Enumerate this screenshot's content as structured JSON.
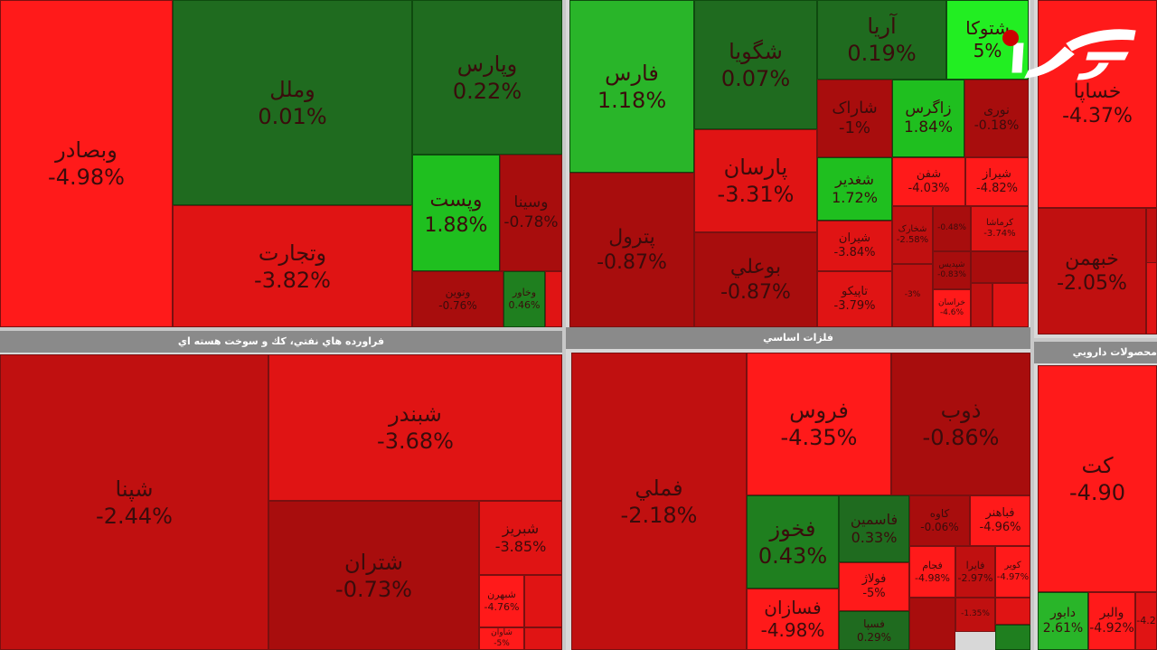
{
  "chart_data": [
    {
      "type": "treemap",
      "panel_title": "",
      "cells": [
        {
          "name": "وبصادر",
          "change": "-4.98%",
          "color": "#ff1a1a"
        },
        {
          "name": "وملل",
          "change": "0.01%",
          "color": "#1f6b1f"
        },
        {
          "name": "وپارس",
          "change": "0.22%",
          "color": "#1f6b1f"
        },
        {
          "name": "وتجارت",
          "change": "-3.82%",
          "color": "#e01414"
        },
        {
          "name": "وپست",
          "change": "1.88%",
          "color": "#1fbf1f"
        },
        {
          "name": "وسینا",
          "change": "-0.78%",
          "color": "#a80d0d"
        },
        {
          "name": "ونوین",
          "change": "-0.76%",
          "color": "#a80d0d"
        },
        {
          "name": "وخاور",
          "change": "0.46%",
          "color": "#1f7f1f"
        },
        {
          "name": "",
          "change": "",
          "color": "#e01414"
        }
      ]
    },
    {
      "type": "treemap",
      "panel_title": "",
      "cells": [
        {
          "name": "فارس",
          "change": "1.18%",
          "color": "#29b529"
        },
        {
          "name": "شگویا",
          "change": "0.07%",
          "color": "#1f6b1f"
        },
        {
          "name": "آریا",
          "change": "0.19%",
          "color": "#1f6b1f"
        },
        {
          "name": "شتوکا",
          "change": "5%",
          "color": "#22ee22"
        },
        {
          "name": "شاراک",
          "change": "-1%",
          "color": "#a80d0d"
        },
        {
          "name": "زاگرس",
          "change": "1.84%",
          "color": "#1fbf1f"
        },
        {
          "name": "نوری",
          "change": "-0.18%",
          "color": "#a80d0d"
        },
        {
          "name": "پارسان",
          "change": "-3.31%",
          "color": "#e01414"
        },
        {
          "name": "شغدیر",
          "change": "1.72%",
          "color": "#1fbf1f"
        },
        {
          "name": "شفن",
          "change": "-4.03%",
          "color": "#ff1a1a"
        },
        {
          "name": "شیراز",
          "change": "-4.82%",
          "color": "#ff1a1a"
        },
        {
          "name": "پترول",
          "change": "-0.87%",
          "color": "#a80d0d"
        },
        {
          "name": "بوعلي",
          "change": "-0.87%",
          "color": "#a80d0d"
        },
        {
          "name": "شیران",
          "change": "-3.84%",
          "color": "#e01414"
        },
        {
          "name": "شخارک",
          "change": "-2.58%",
          "color": "#c01010"
        },
        {
          "name": "",
          "change": "-0.48%",
          "color": "#a80d0d"
        },
        {
          "name": "کرماشا",
          "change": "-3.74%",
          "color": "#e01414"
        },
        {
          "name": "شپدیس",
          "change": "-0.83%",
          "color": "#a80d0d"
        },
        {
          "name": "",
          "change": "",
          "color": "#a80d0d"
        },
        {
          "name": "",
          "change": "",
          "color": "#c01010"
        },
        {
          "name": "تاپیکو",
          "change": "-3.79%",
          "color": "#e01414"
        },
        {
          "name": "",
          "change": "-3%",
          "color": "#c01010"
        },
        {
          "name": "خراسان",
          "change": "-4.6%",
          "color": "#ff1a1a"
        },
        {
          "name": "",
          "change": "",
          "color": "#c01010"
        },
        {
          "name": "",
          "change": "",
          "color": "#e01414"
        }
      ]
    },
    {
      "type": "treemap",
      "panel_title": "",
      "cells": [
        {
          "name": "خساپا",
          "change": "-4.37%",
          "color": "#ff1a1a"
        },
        {
          "name": "",
          "change": "",
          "color": "#c01010"
        },
        {
          "name": "خبهمن",
          "change": "-2.05%",
          "color": "#c01010"
        },
        {
          "name": "",
          "change": "",
          "color": "#e01414"
        }
      ]
    },
    {
      "type": "treemap",
      "panel_title": "فراورده هاي نفتي، كك و سوخت هسته اي",
      "cells": [
        {
          "name": "شپنا",
          "change": "-2.44%",
          "color": "#c01010"
        },
        {
          "name": "شبندر",
          "change": "-3.68%",
          "color": "#e01414"
        },
        {
          "name": "شتران",
          "change": "-0.73%",
          "color": "#a80d0d"
        },
        {
          "name": "شبریز",
          "change": "-3.85%",
          "color": "#e01414"
        },
        {
          "name": "شبهرن",
          "change": "-4.76%",
          "color": "#ff1a1a"
        },
        {
          "name": "",
          "change": "",
          "color": "#e01414"
        },
        {
          "name": "شاوان",
          "change": "-5%",
          "color": "#ff1a1a"
        },
        {
          "name": "",
          "change": "",
          "color": "#e01414"
        }
      ]
    },
    {
      "type": "treemap",
      "panel_title": "فلزات اساسي",
      "cells": [
        {
          "name": "فملي",
          "change": "-2.18%",
          "color": "#c01010"
        },
        {
          "name": "فروس",
          "change": "-4.35%",
          "color": "#ff1a1a"
        },
        {
          "name": "ذوب",
          "change": "-0.86%",
          "color": "#a80d0d"
        },
        {
          "name": "فخوز",
          "change": "0.43%",
          "color": "#1f7f1f"
        },
        {
          "name": "فاسمین",
          "change": "0.33%",
          "color": "#1f6b1f"
        },
        {
          "name": "کاوه",
          "change": "-0.06%",
          "color": "#a80d0d"
        },
        {
          "name": "فباهنر",
          "change": "-4.96%",
          "color": "#ff1a1a"
        },
        {
          "name": "فولاژ",
          "change": "-5%",
          "color": "#ff1a1a"
        },
        {
          "name": "فجام",
          "change": "-4.98%",
          "color": "#ff1a1a"
        },
        {
          "name": "فایرا",
          "change": "-2.97%",
          "color": "#c01010"
        },
        {
          "name": "کویر",
          "change": "-4.97%",
          "color": "#ff1a1a"
        },
        {
          "name": "فسازان",
          "change": "-4.98%",
          "color": "#ff1a1a"
        },
        {
          "name": "فسپا",
          "change": "0.29%",
          "color": "#1f6b1f"
        },
        {
          "name": "",
          "change": "",
          "color": "#a80d0d"
        },
        {
          "name": "",
          "change": "-1.35%",
          "color": "#c01010"
        },
        {
          "name": "",
          "change": "",
          "color": "#e01414"
        },
        {
          "name": "",
          "change": "",
          "color": "#1f7f1f"
        }
      ]
    },
    {
      "type": "treemap",
      "panel_title": "محصولات دارويي",
      "cells": [
        {
          "name": "کت",
          "change": "-4.90",
          "color": "#ff1a1a"
        },
        {
          "name": "دابور",
          "change": "2.61%",
          "color": "#29b529"
        },
        {
          "name": "والبر",
          "change": "-4.92%",
          "color": "#ff1a1a"
        },
        {
          "name": "",
          "change": "-4.2",
          "color": "#e01414"
        }
      ]
    }
  ],
  "logo": {
    "text": "رکنا",
    "brand_color": "#cc0000"
  }
}
